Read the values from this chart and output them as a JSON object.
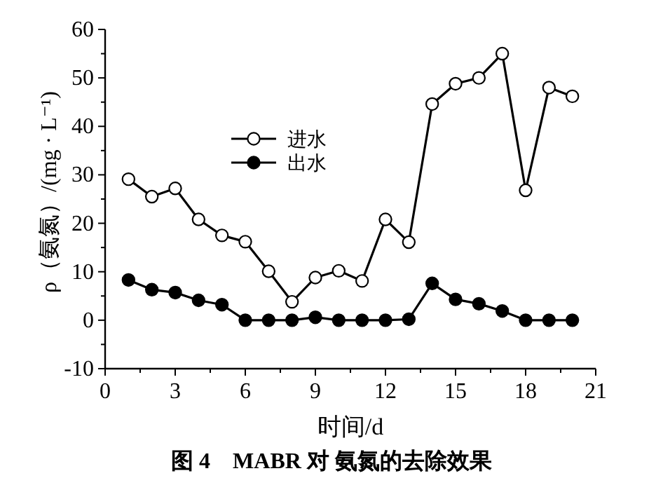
{
  "chart_data": {
    "type": "line",
    "title": "图 4　MABR 对 氨氮的去除效果",
    "xlabel": "时间/d",
    "ylabel": "ρ（氨氮）/(mg · L⁻¹)",
    "x": [
      1,
      2,
      3,
      4,
      5,
      6,
      7,
      8,
      9,
      10,
      11,
      12,
      13,
      14,
      15,
      16,
      17,
      18,
      19,
      20
    ],
    "series": [
      {
        "name": "进水",
        "color": "#000000",
        "marker": "circle",
        "values": [
          29.1,
          25.5,
          27.2,
          20.8,
          17.5,
          16.2,
          10.1,
          3.8,
          8.8,
          10.2,
          8.1,
          20.8,
          16.1,
          44.6,
          48.8,
          50,
          55,
          26.8,
          48,
          46.2
        ]
      },
      {
        "name": "出水",
        "color": "#000000",
        "marker": "circle",
        "values": [
          8.3,
          6.3,
          5.7,
          4.1,
          3.2,
          0,
          0,
          0,
          0.6,
          0,
          0,
          0,
          0.2,
          7.6,
          4.3,
          3.4,
          1.9,
          0,
          0,
          0
        ]
      }
    ],
    "xlim": [
      0,
      21
    ],
    "xticks": [
      0,
      3,
      6,
      9,
      12,
      15,
      18,
      21
    ],
    "ylim": [
      -10,
      60
    ],
    "yticks": [
      -10,
      0,
      10,
      20,
      30,
      40,
      50,
      60
    ],
    "legend": "top left",
    "grid": false,
    "line_style": "solid"
  }
}
